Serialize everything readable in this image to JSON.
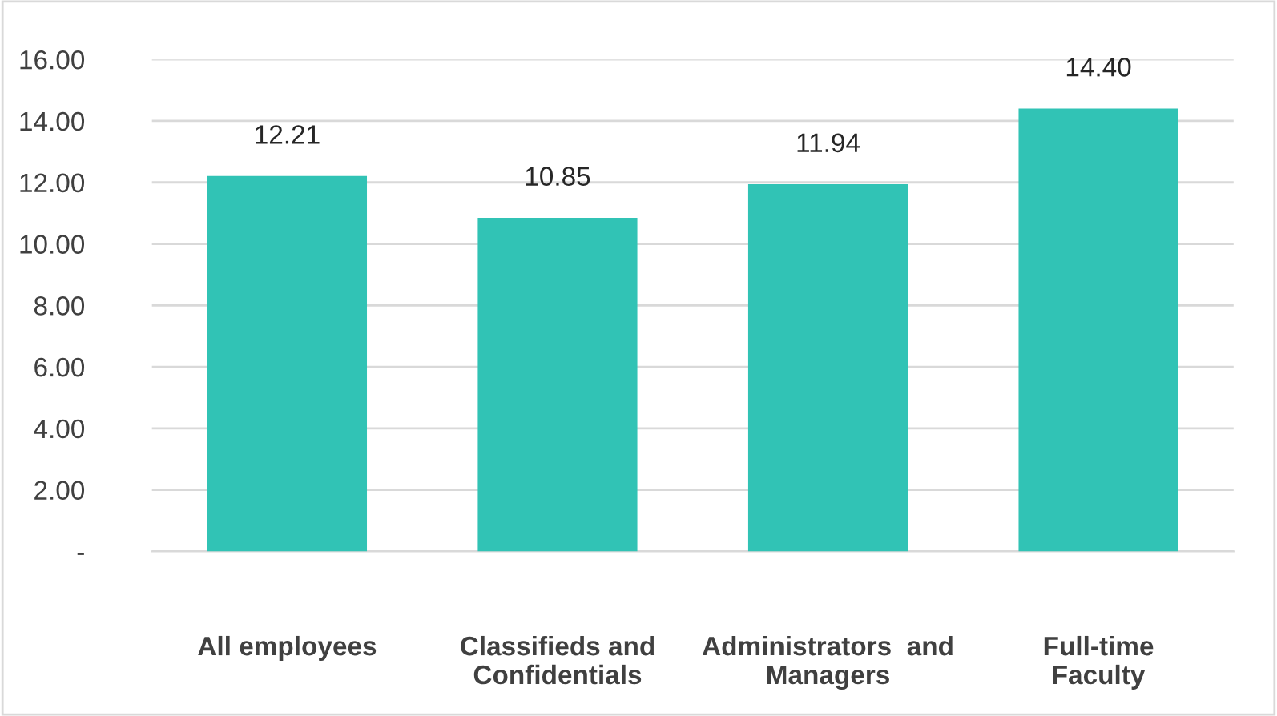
{
  "chart_data": {
    "type": "bar",
    "categories": [
      "All employees",
      "Classifieds and\nConfidentials",
      "Administrators  and\nManagers",
      "Full-time\nFaculty"
    ],
    "values": [
      12.21,
      10.85,
      11.94,
      14.4
    ],
    "value_labels": [
      "12.21",
      "10.85",
      "11.94",
      "14.40"
    ],
    "color": "#31c3b5",
    "ylim": [
      0,
      16
    ],
    "yticks": [
      {
        "value": 0,
        "label": "-"
      },
      {
        "value": 2,
        "label": "2.00"
      },
      {
        "value": 4,
        "label": "4.00"
      },
      {
        "value": 6,
        "label": "6.00"
      },
      {
        "value": 8,
        "label": "8.00"
      },
      {
        "value": 10,
        "label": "10.00"
      },
      {
        "value": 12,
        "label": "12.00"
      },
      {
        "value": 14,
        "label": "14.00"
      },
      {
        "value": 16,
        "label": "16.00"
      }
    ],
    "grid": "y"
  }
}
